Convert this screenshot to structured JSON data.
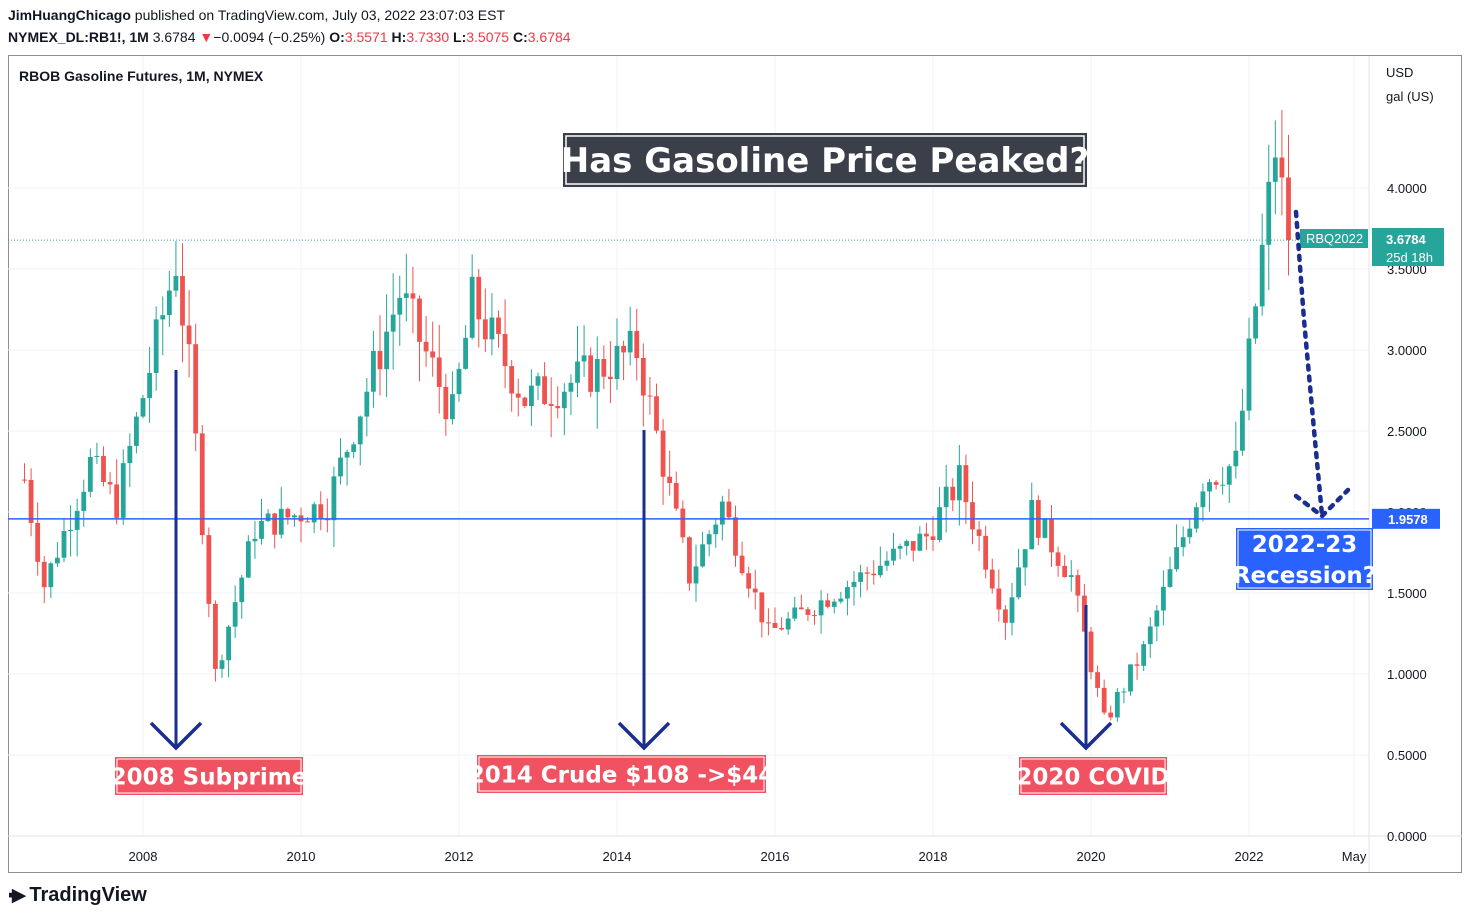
{
  "header": {
    "author": "JimHuangChicago",
    "published": " published on TradingView.com, July 03, 2022 23:07:03 EST",
    "symbol": "NYMEX_DL:RB1!, 1M",
    "last": "3.6784",
    "arrow": "▼",
    "change": "−0.0094 (−0.25%)",
    "o_label": "O:",
    "o": "3.5571",
    "h_label": "H:",
    "h": "3.7330",
    "l_label": "L:",
    "l": "3.5075",
    "c_label": "C:",
    "c": "3.6784"
  },
  "chart_title": "RBOB Gasoline Futures, 1M, NYMEX",
  "banner": "Has Gasoline Price Peaked?",
  "axis_unit": [
    "USD",
    "gal (US)"
  ],
  "price_tag": {
    "symbol": "RBQ2022",
    "price": "3.6784",
    "countdown": "25d 18h"
  },
  "hline_tag": "1.9578",
  "annotations": {
    "subprime": "2008 Subprime",
    "crude": "2014 Crude $108 ->$44",
    "covid": "2020 COVID",
    "recession": [
      "2022-23",
      "Recession?"
    ]
  },
  "footer": {
    "brand": "TradingView"
  },
  "colors": {
    "up": "#26a69a",
    "down": "#ef5350",
    "hline": "#2962ff",
    "arrow": "#1a2e8f",
    "label_red": "#f05261",
    "label_blue": "#2962ff",
    "banner_bg": "#3b3f4a"
  },
  "chart_data": {
    "type": "candlestick",
    "interval": "1M",
    "ylim": [
      0,
      4.6
    ],
    "yticks": [
      "0.0000",
      "0.5000",
      "1.0000",
      "1.5000",
      "2.0000",
      "2.5000",
      "3.0000",
      "3.5000",
      "4.0000"
    ],
    "xticks": [
      "2008",
      "2010",
      "2012",
      "2014",
      "2016",
      "2018",
      "2020",
      "2022",
      "May"
    ],
    "horizontal_line": 1.9578,
    "last_price": 3.6784,
    "anchors": [
      {
        "date": "2006-07",
        "price": 2.2
      },
      {
        "date": "2006-10",
        "price": 1.55
      },
      {
        "date": "2007-05",
        "price": 2.3
      },
      {
        "date": "2007-09",
        "price": 2.05
      },
      {
        "date": "2008-06",
        "price": 3.55
      },
      {
        "date": "2008-08",
        "price": 2.9
      },
      {
        "date": "2008-12",
        "price": 1.0
      },
      {
        "date": "2009-06",
        "price": 1.9
      },
      {
        "date": "2010-05",
        "price": 2.05
      },
      {
        "date": "2011-04",
        "price": 3.35
      },
      {
        "date": "2011-12",
        "price": 2.6
      },
      {
        "date": "2012-03",
        "price": 3.3
      },
      {
        "date": "2012-11",
        "price": 2.7
      },
      {
        "date": "2013-06",
        "price": 2.8
      },
      {
        "date": "2014-04",
        "price": 3.0
      },
      {
        "date": "2014-12",
        "price": 1.6
      },
      {
        "date": "2015-05",
        "price": 2.05
      },
      {
        "date": "2015-12",
        "price": 1.25
      },
      {
        "date": "2017-12",
        "price": 1.85
      },
      {
        "date": "2018-05",
        "price": 2.2
      },
      {
        "date": "2018-12",
        "price": 1.35
      },
      {
        "date": "2019-04",
        "price": 2.0
      },
      {
        "date": "2019-10",
        "price": 1.6
      },
      {
        "date": "2020-03",
        "price": 0.7
      },
      {
        "date": "2020-09",
        "price": 1.15
      },
      {
        "date": "2021-06",
        "price": 2.2
      },
      {
        "date": "2021-11",
        "price": 2.3
      },
      {
        "date": "2022-05",
        "price": 4.25
      },
      {
        "date": "2022-07",
        "price": 3.68
      }
    ]
  }
}
